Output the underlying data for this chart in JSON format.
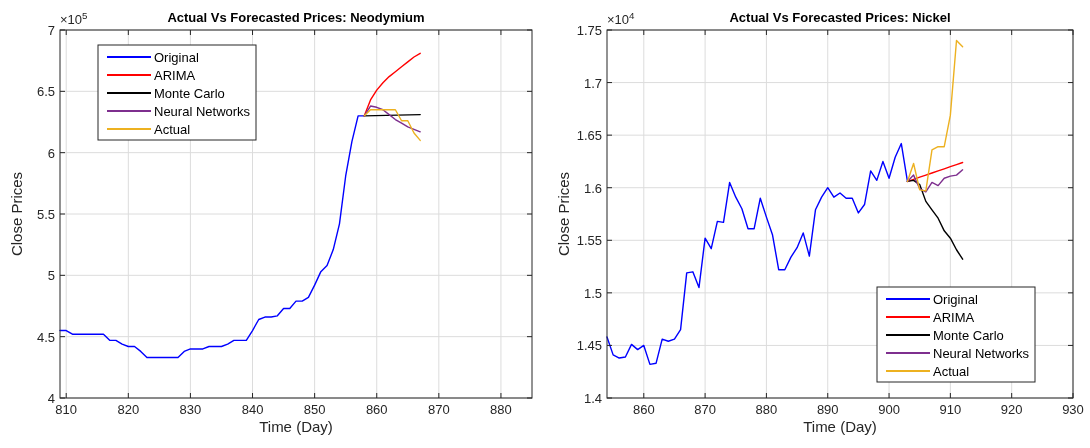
{
  "chart_data": [
    {
      "type": "line",
      "title": "Actual Vs Forecasted Prices: Neodymium",
      "xlabel": "Time (Day)",
      "ylabel": "Close Prices",
      "annotations": [
        "×10$^{5}$"
      ],
      "xlim": [
        809,
        885
      ],
      "xticks": [
        810,
        820,
        830,
        840,
        850,
        860,
        870,
        880
      ],
      "ylim": [
        4,
        7
      ],
      "yticks": [
        4,
        4.5,
        5,
        5.5,
        6,
        6.5,
        7
      ],
      "grid": true,
      "legend": "top left",
      "line_style": "solid",
      "series": [
        {
          "name": "Original",
          "color": "#0000ff",
          "x": [
            809,
            810,
            811,
            812,
            813,
            814,
            815,
            816,
            817,
            818,
            819,
            820,
            821,
            822,
            823,
            824,
            825,
            826,
            827,
            828,
            829,
            830,
            831,
            832,
            833,
            834,
            835,
            836,
            837,
            838,
            839,
            840,
            841,
            842,
            843,
            844,
            845,
            846,
            847,
            848,
            849,
            850,
            851,
            852,
            853,
            854,
            855,
            856,
            857,
            858
          ],
          "values": [
            4.55,
            4.55,
            4.52,
            4.52,
            4.52,
            4.52,
            4.52,
            4.52,
            4.47,
            4.47,
            4.44,
            4.42,
            4.42,
            4.38,
            4.33,
            4.33,
            4.33,
            4.33,
            4.33,
            4.33,
            4.38,
            4.4,
            4.4,
            4.4,
            4.42,
            4.42,
            4.42,
            4.44,
            4.47,
            4.47,
            4.47,
            4.55,
            4.64,
            4.66,
            4.66,
            4.67,
            4.73,
            4.73,
            4.79,
            4.79,
            4.82,
            4.92,
            5.03,
            5.08,
            5.21,
            5.42,
            5.81,
            6.09,
            6.3,
            6.3
          ]
        },
        {
          "name": "ARIMA",
          "color": "#ff0000",
          "x": [
            858,
            859,
            860,
            861,
            862,
            863,
            864,
            865,
            866,
            867
          ],
          "values": [
            6.3,
            6.43,
            6.51,
            6.57,
            6.62,
            6.66,
            6.7,
            6.74,
            6.78,
            6.81
          ]
        },
        {
          "name": "Monte Carlo",
          "color": "#000000",
          "x": [
            858,
            867
          ],
          "values": [
            6.3,
            6.31
          ]
        },
        {
          "name": "Neural Networks",
          "color": "#7e2f8e",
          "x": [
            858,
            859,
            860,
            861,
            862,
            863,
            864,
            865,
            866,
            867
          ],
          "values": [
            6.3,
            6.38,
            6.37,
            6.35,
            6.31,
            6.27,
            6.24,
            6.21,
            6.19,
            6.17
          ]
        },
        {
          "name": "Actual",
          "color": "#edb120",
          "x": [
            858,
            859,
            860,
            861,
            862,
            863,
            864,
            865,
            866,
            867
          ],
          "values": [
            6.3,
            6.35,
            6.35,
            6.35,
            6.35,
            6.35,
            6.26,
            6.26,
            6.16,
            6.1
          ]
        }
      ]
    },
    {
      "type": "line",
      "title": "Actual Vs Forecasted Prices: Nickel",
      "xlabel": "Time (Day)",
      "ylabel": "Close Prices",
      "annotations": [
        "×10$^{4}$"
      ],
      "xlim": [
        854,
        930
      ],
      "xticks": [
        860,
        870,
        880,
        890,
        900,
        910,
        920,
        930
      ],
      "ylim": [
        1.4,
        1.75
      ],
      "yticks": [
        1.4,
        1.45,
        1.5,
        1.55,
        1.6,
        1.65,
        1.7,
        1.75
      ],
      "grid": true,
      "legend": "bottom right",
      "line_style": "solid",
      "series": [
        {
          "name": "Original",
          "color": "#0000ff",
          "x": [
            854,
            855,
            856,
            857,
            858,
            859,
            860,
            861,
            862,
            863,
            864,
            865,
            866,
            867,
            868,
            869,
            870,
            871,
            872,
            873,
            874,
            875,
            876,
            877,
            878,
            879,
            880,
            881,
            882,
            883,
            884,
            885,
            886,
            887,
            888,
            889,
            890,
            891,
            892,
            893,
            894,
            895,
            896,
            897,
            898,
            899,
            900,
            901,
            902,
            903
          ],
          "values": [
            1.458,
            1.441,
            1.438,
            1.439,
            1.451,
            1.446,
            1.45,
            1.432,
            1.433,
            1.456,
            1.454,
            1.456,
            1.465,
            1.519,
            1.52,
            1.505,
            1.552,
            1.542,
            1.568,
            1.567,
            1.605,
            1.591,
            1.58,
            1.561,
            1.561,
            1.59,
            1.572,
            1.555,
            1.522,
            1.522,
            1.534,
            1.543,
            1.557,
            1.535,
            1.579,
            1.591,
            1.6,
            1.591,
            1.595,
            1.59,
            1.59,
            1.576,
            1.584,
            1.616,
            1.607,
            1.625,
            1.609,
            1.629,
            1.642,
            1.606
          ]
        },
        {
          "name": "ARIMA",
          "color": "#ff0000",
          "x": [
            903,
            904,
            905,
            906,
            907,
            908,
            909,
            910,
            911,
            912
          ],
          "values": [
            1.606,
            1.608,
            1.61,
            1.612,
            1.614,
            1.616,
            1.618,
            1.62,
            1.622,
            1.624
          ]
        },
        {
          "name": "Monte Carlo",
          "color": "#000000",
          "x": [
            903,
            904,
            905,
            906,
            907,
            908,
            909,
            910,
            911,
            912
          ],
          "values": [
            1.606,
            1.607,
            1.603,
            1.587,
            1.579,
            1.571,
            1.559,
            1.552,
            1.541,
            1.532
          ]
        },
        {
          "name": "Neural Networks",
          "color": "#7e2f8e",
          "x": [
            903,
            904,
            905,
            906,
            907,
            908,
            909,
            910,
            911,
            912
          ],
          "values": [
            1.606,
            1.612,
            1.599,
            1.596,
            1.605,
            1.602,
            1.609,
            1.611,
            1.612,
            1.617
          ]
        },
        {
          "name": "Actual",
          "color": "#edb120",
          "x": [
            903,
            904,
            905,
            906,
            907,
            908,
            909,
            910,
            911,
            912
          ],
          "values": [
            1.606,
            1.623,
            1.598,
            1.597,
            1.636,
            1.639,
            1.639,
            1.669,
            1.74,
            1.734
          ]
        }
      ]
    }
  ]
}
